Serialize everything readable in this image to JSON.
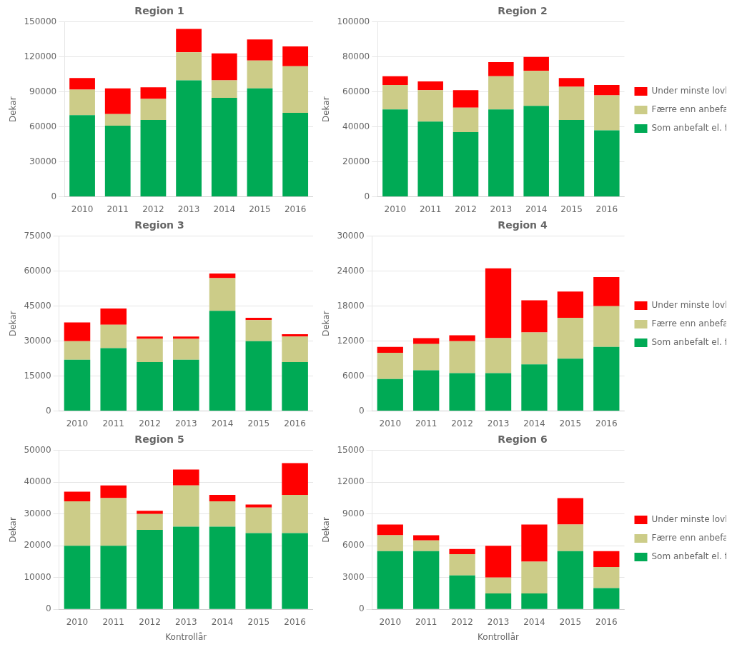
{
  "chart_data": [
    {
      "type": "bar",
      "title": "Region 1",
      "ylabel": "Dekar",
      "stacked": true,
      "grid": true,
      "legend": false,
      "categories": [
        "2010",
        "2011",
        "2012",
        "2013",
        "2014",
        "2015",
        "2016"
      ],
      "series": [
        {
          "name": "Som anbefalt el. flere",
          "color": "#00AA55",
          "values": [
            70000,
            61000,
            66000,
            100000,
            85000,
            93000,
            72000
          ]
        },
        {
          "name": "Færre enn anbefalt",
          "color": "#CCCC88",
          "values": [
            22000,
            10000,
            18000,
            24000,
            15000,
            24000,
            40000
          ]
        },
        {
          "name": "Under minste lovlige",
          "color": "#FF0000",
          "values": [
            10000,
            22000,
            10000,
            20000,
            23000,
            18000,
            17000
          ]
        }
      ],
      "ylim": [
        0,
        150000
      ],
      "yticks": [
        0,
        30000,
        60000,
        90000,
        120000,
        150000
      ]
    },
    {
      "type": "bar",
      "title": "Region 2",
      "ylabel": "Dekar",
      "stacked": true,
      "grid": true,
      "legend": "right",
      "categories": [
        "2010",
        "2011",
        "2012",
        "2013",
        "2014",
        "2015",
        "2016"
      ],
      "series": [
        {
          "name": "Som anbefalt el. flere",
          "color": "#00AA55",
          "values": [
            50000,
            43000,
            37000,
            50000,
            52000,
            44000,
            38000
          ]
        },
        {
          "name": "Færre enn anbefalt",
          "color": "#CCCC88",
          "values": [
            14000,
            18000,
            14000,
            19000,
            20000,
            19000,
            20000
          ]
        },
        {
          "name": "Under minste lovlige",
          "color": "#FF0000",
          "values": [
            5000,
            5000,
            10000,
            8000,
            8000,
            5000,
            6000
          ]
        }
      ],
      "ylim": [
        0,
        100000
      ],
      "yticks": [
        0,
        20000,
        40000,
        60000,
        80000,
        100000
      ]
    },
    {
      "type": "bar",
      "title": "Region 3",
      "ylabel": "Dekar",
      "stacked": true,
      "grid": true,
      "legend": false,
      "categories": [
        "2010",
        "2011",
        "2012",
        "2013",
        "2014",
        "2015",
        "2016"
      ],
      "series": [
        {
          "name": "Som anbefalt el. flere",
          "color": "#00AA55",
          "values": [
            22000,
            27000,
            21000,
            22000,
            43000,
            30000,
            21000
          ]
        },
        {
          "name": "Færre enn anbefalt",
          "color": "#CCCC88",
          "values": [
            8000,
            10000,
            10000,
            9000,
            14000,
            9000,
            11000
          ]
        },
        {
          "name": "Under minste lovlige",
          "color": "#FF0000",
          "values": [
            8000,
            7000,
            1000,
            1000,
            2000,
            1000,
            1000
          ]
        }
      ],
      "ylim": [
        0,
        75000
      ],
      "yticks": [
        0,
        15000,
        30000,
        45000,
        60000,
        75000
      ]
    },
    {
      "type": "bar",
      "title": "Region 4",
      "ylabel": "Dekar",
      "stacked": true,
      "grid": true,
      "legend": "right",
      "categories": [
        "2010",
        "2011",
        "2012",
        "2013",
        "2014",
        "2015",
        "2016"
      ],
      "series": [
        {
          "name": "Som anbefalt el. flere",
          "color": "#00AA55",
          "values": [
            5500,
            7000,
            6500,
            6500,
            8000,
            9000,
            11000
          ]
        },
        {
          "name": "Færre enn anbefalt",
          "color": "#CCCC88",
          "values": [
            4500,
            4500,
            5500,
            6000,
            5500,
            7000,
            7000
          ]
        },
        {
          "name": "Under minste lovlige",
          "color": "#FF0000",
          "values": [
            1000,
            1000,
            1000,
            12000,
            5500,
            4500,
            5000
          ]
        }
      ],
      "ylim": [
        0,
        30000
      ],
      "yticks": [
        0,
        6000,
        12000,
        18000,
        24000,
        30000
      ]
    },
    {
      "type": "bar",
      "title": "Region 5",
      "xlabel": "Kontrollår",
      "ylabel": "Dekar",
      "stacked": true,
      "grid": true,
      "legend": false,
      "categories": [
        "2010",
        "2011",
        "2012",
        "2013",
        "2014",
        "2015",
        "2016"
      ],
      "series": [
        {
          "name": "Som anbefalt el. flere",
          "color": "#00AA55",
          "values": [
            20000,
            20000,
            25000,
            26000,
            26000,
            24000,
            24000
          ]
        },
        {
          "name": "Færre enn anbefalt",
          "color": "#CCCC88",
          "values": [
            14000,
            15000,
            5000,
            13000,
            8000,
            8000,
            12000
          ]
        },
        {
          "name": "Under minste lovlige",
          "color": "#FF0000",
          "values": [
            3000,
            4000,
            1000,
            5000,
            2000,
            1000,
            10000
          ]
        }
      ],
      "ylim": [
        0,
        50000
      ],
      "yticks": [
        0,
        10000,
        20000,
        30000,
        40000,
        50000
      ]
    },
    {
      "type": "bar",
      "title": "Region 6",
      "xlabel": "Kontrollår",
      "ylabel": "Dekar",
      "stacked": true,
      "grid": true,
      "legend": "right",
      "categories": [
        "2010",
        "2011",
        "2012",
        "2013",
        "2014",
        "2015",
        "2016"
      ],
      "series": [
        {
          "name": "Som anbefalt el. flere",
          "color": "#00AA55",
          "values": [
            5500,
            5500,
            3200,
            1500,
            1500,
            5500,
            2000
          ]
        },
        {
          "name": "Færre enn anbefalt",
          "color": "#CCCC88",
          "values": [
            1500,
            1000,
            2000,
            1500,
            3000,
            2500,
            2000
          ]
        },
        {
          "name": "Under minste lovlige",
          "color": "#FF0000",
          "values": [
            1000,
            500,
            500,
            3000,
            3500,
            2500,
            1500
          ]
        }
      ],
      "ylim": [
        0,
        15000
      ],
      "yticks": [
        0,
        3000,
        6000,
        9000,
        12000,
        15000
      ]
    }
  ]
}
